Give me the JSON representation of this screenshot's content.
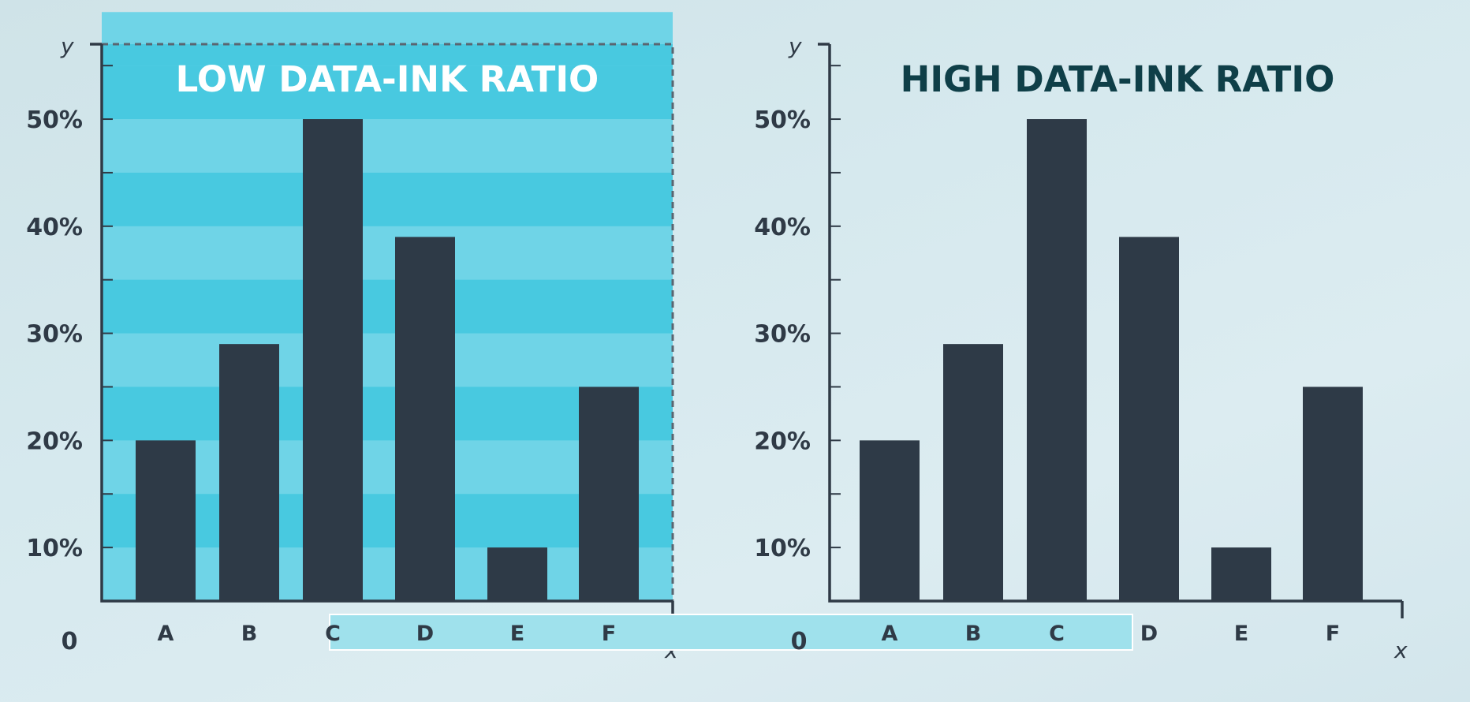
{
  "chart_data": [
    {
      "type": "bar",
      "title": "LOW DATA-INK RATIO",
      "xlabel": "x",
      "ylabel": "y",
      "categories": [
        "A",
        "B",
        "C",
        "D",
        "E",
        "F"
      ],
      "values": [
        20,
        29,
        50,
        39,
        10,
        25
      ],
      "yticks": [
        "10%",
        "20%",
        "30%",
        "40%",
        "50%"
      ],
      "origin_label": "0",
      "ylim": [
        5,
        57
      ],
      "background": "striped",
      "colors": {
        "bar": "#2e3a47",
        "background_dark": "#48c9e0",
        "background_light": "#6fd4e7",
        "title": "#ffffff"
      }
    },
    {
      "type": "bar",
      "title": "HIGH DATA-INK RATIO",
      "xlabel": "x",
      "ylabel": "y",
      "categories": [
        "A",
        "B",
        "C",
        "D",
        "E",
        "F"
      ],
      "values": [
        20,
        29,
        50,
        39,
        10,
        25
      ],
      "yticks": [
        "10%",
        "20%",
        "30%",
        "40%",
        "50%"
      ],
      "origin_label": "0",
      "ylim": [
        5,
        57
      ],
      "background": "none",
      "colors": {
        "bar": "#2e3a47",
        "title": "#0f3f48"
      }
    }
  ]
}
